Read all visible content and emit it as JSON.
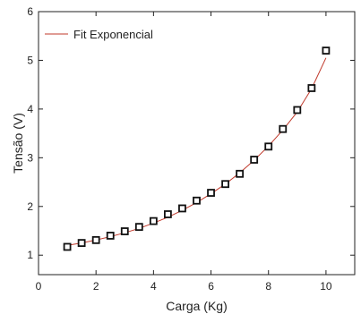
{
  "chart_data": {
    "type": "scatter",
    "title": "",
    "xlabel": "Carga (Kg)",
    "ylabel": "Tensão (V)",
    "xlim": [
      0,
      11
    ],
    "ylim": [
      0.6,
      6
    ],
    "xticks": [
      0,
      2,
      4,
      6,
      8,
      10
    ],
    "yticks": [
      1,
      2,
      3,
      4,
      5,
      6
    ],
    "xtick_labels": [
      "0",
      "2",
      "4",
      "6",
      "8",
      "10"
    ],
    "ytick_labels": [
      "1",
      "2",
      "3",
      "4",
      "5",
      "6"
    ],
    "grid": false,
    "legend": {
      "position": "top-left",
      "entries": [
        {
          "label": "Fit Exponencial",
          "style": "line",
          "color": "#c0392b"
        }
      ]
    },
    "series": [
      {
        "name": "",
        "type": "scatter",
        "marker": "open-square",
        "color": "#111111",
        "x": [
          1.0,
          1.5,
          2.0,
          2.5,
          3.0,
          3.5,
          4.0,
          4.5,
          5.0,
          5.5,
          6.0,
          6.5,
          7.0,
          7.5,
          8.0,
          8.5,
          9.0,
          9.5,
          10.0
        ],
        "y": [
          1.17,
          1.25,
          1.31,
          1.4,
          1.49,
          1.58,
          1.7,
          1.84,
          1.96,
          2.12,
          2.28,
          2.46,
          2.67,
          2.96,
          3.23,
          3.59,
          3.98,
          4.43,
          5.2
        ]
      },
      {
        "name": "Fit Exponencial",
        "type": "line",
        "color": "#c0392b",
        "x": [
          1.0,
          1.5,
          2.0,
          2.5,
          3.0,
          3.5,
          4.0,
          4.5,
          5.0,
          5.5,
          6.0,
          6.5,
          7.0,
          7.5,
          8.0,
          8.5,
          9.0,
          9.5,
          10.0
        ],
        "y": [
          1.2,
          1.25,
          1.31,
          1.38,
          1.46,
          1.55,
          1.66,
          1.78,
          1.92,
          2.08,
          2.26,
          2.46,
          2.69,
          2.95,
          3.24,
          3.57,
          3.94,
          4.42,
          5.05
        ]
      }
    ]
  }
}
